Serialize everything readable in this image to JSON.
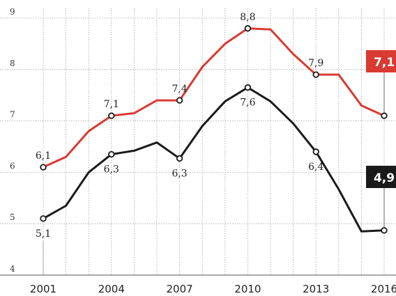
{
  "chart_data": {
    "type": "line",
    "x": [
      2001,
      2002,
      2003,
      2004,
      2005,
      2006,
      2007,
      2008,
      2009,
      2010,
      2011,
      2012,
      2013,
      2014,
      2015,
      2016
    ],
    "x_tick_labels": [
      "2001",
      "2004",
      "2007",
      "2010",
      "2013",
      "2016"
    ],
    "y_tick_labels": [
      "4",
      "5",
      "6",
      "7",
      "8",
      "9"
    ],
    "ylim": [
      4,
      9
    ],
    "grid": "vertical dotted lines at each year, horizontal dotted lines at each integer",
    "series": [
      {
        "color": "#d93a31",
        "values": [
          6.1,
          6.3,
          6.8,
          7.1,
          7.15,
          7.4,
          7.4,
          8.05,
          8.5,
          8.8,
          8.78,
          8.3,
          7.9,
          7.9,
          7.3,
          7.1
        ],
        "labels": [
          {
            "x": 2001,
            "text": "6,1",
            "pos": "above"
          },
          {
            "x": 2004,
            "text": "7,1",
            "pos": "above"
          },
          {
            "x": 2007,
            "text": "7,4",
            "pos": "above"
          },
          {
            "x": 2010,
            "text": "8,8",
            "pos": "above"
          },
          {
            "x": 2013,
            "text": "7,9",
            "pos": "above"
          }
        ],
        "end_label": "7,1"
      },
      {
        "color": "#1a1a1a",
        "values": [
          5.1,
          5.35,
          6.0,
          6.35,
          6.42,
          6.58,
          6.27,
          6.9,
          7.38,
          7.65,
          7.38,
          6.95,
          6.4,
          5.67,
          4.85,
          4.87
        ],
        "labels": [
          {
            "x": 2001,
            "text": "5,1",
            "pos": "below"
          },
          {
            "x": 2004,
            "text": "6,3",
            "pos": "below"
          },
          {
            "x": 2007,
            "text": "6,3",
            "pos": "below"
          },
          {
            "x": 2010,
            "text": "7,6",
            "pos": "below"
          },
          {
            "x": 2013,
            "text": "6,4",
            "pos": "below"
          }
        ],
        "end_label": "4,9"
      }
    ]
  }
}
